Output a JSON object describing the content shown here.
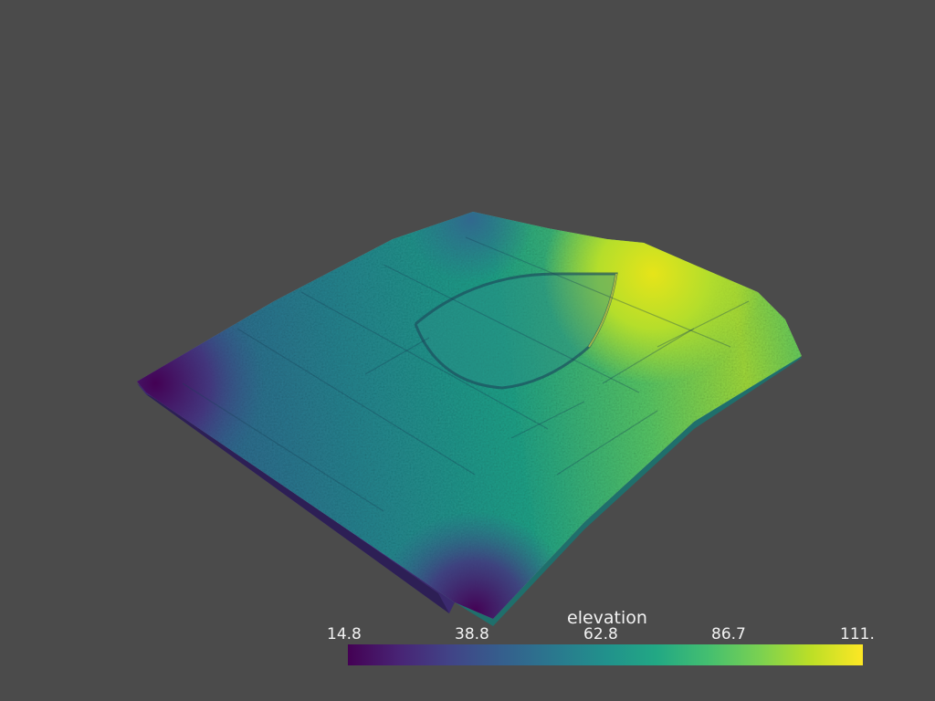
{
  "scalar_bar": {
    "title": "elevation",
    "colormap": "viridis",
    "ticks": [
      "14.8",
      "38.8",
      "62.8",
      "86.7",
      "111."
    ]
  },
  "scene": {
    "background_color": "#4b4b4b",
    "object": "terrain-surface"
  }
}
